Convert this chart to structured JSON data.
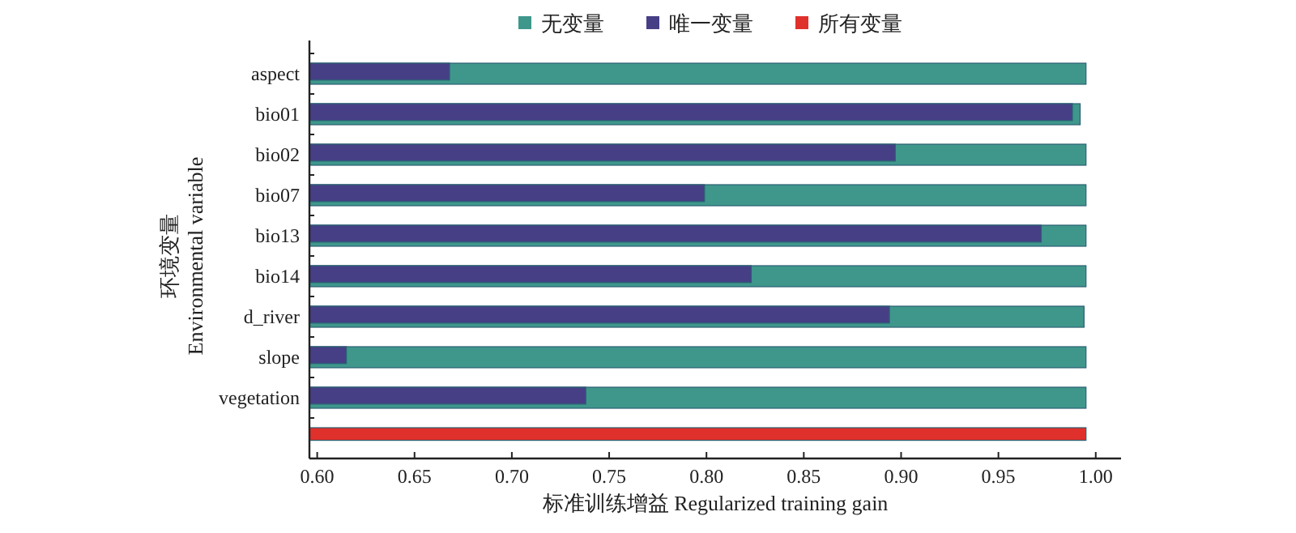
{
  "chart_data": {
    "type": "bar",
    "orientation": "horizontal",
    "xlabel": "标准训练增益 Regularized training gain",
    "ylabel": "环境变量\nEnvironmental variable",
    "categories": [
      "aspect",
      "bio01",
      "bio02",
      "bio07",
      "bio13",
      "bio14",
      "d_river",
      "slope",
      "vegetation",
      null
    ],
    "series": [
      {
        "name": "无变量",
        "color": "#3f978c",
        "values": [
          0.995,
          0.992,
          0.995,
          0.995,
          0.995,
          0.995,
          0.994,
          0.995,
          0.995,
          null
        ]
      },
      {
        "name": "唯一变量",
        "color": "#463f86",
        "values": [
          0.668,
          0.988,
          0.897,
          0.799,
          0.972,
          0.823,
          0.894,
          0.615,
          0.738,
          null
        ]
      },
      {
        "name": "所有变量",
        "color": "#e0302b",
        "values": [
          null,
          null,
          null,
          null,
          null,
          null,
          null,
          null,
          null,
          0.995
        ]
      }
    ],
    "xlim": [
      0.596,
      1.013
    ],
    "xticks": [
      {
        "value": 0.6,
        "label": "0.60"
      },
      {
        "value": 0.65,
        "label": "0.65"
      },
      {
        "value": 0.7,
        "label": "0.70"
      },
      {
        "value": 0.75,
        "label": "0.75"
      },
      {
        "value": 0.8,
        "label": "0.80"
      },
      {
        "value": 0.85,
        "label": "0.85"
      },
      {
        "value": 0.9,
        "label": "0.90"
      },
      {
        "value": 0.95,
        "label": "0.95"
      },
      {
        "value": 1.0,
        "label": "1.00"
      }
    ],
    "legend": "top",
    "grid": false
  }
}
